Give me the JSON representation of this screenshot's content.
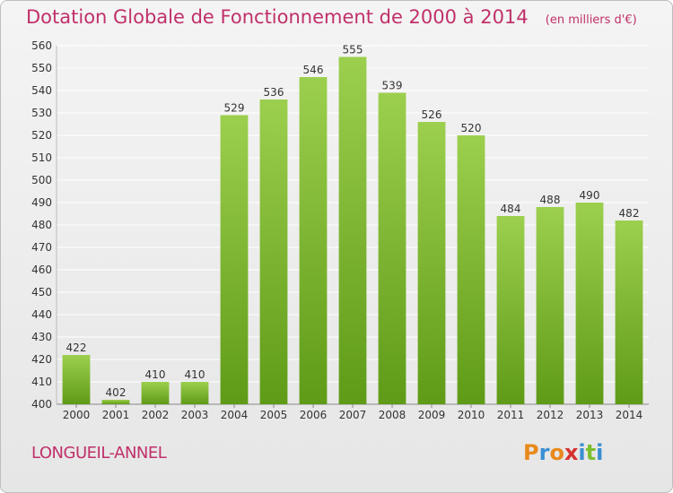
{
  "header": {
    "title": "Dotation Globale de Fonctionnement de 2000 à 2014",
    "subtitle": "(en milliers d'€)"
  },
  "footer": {
    "commune": "LONGUEIL-ANNEL",
    "logo": "Proxiti"
  },
  "colors": {
    "title": "#c0306a",
    "bar_light": "#9ccf4e",
    "bar_dark": "#5f9b17",
    "grid": "#ffffff",
    "logo_letters": [
      "#e8891c",
      "#3a8fd2",
      "#e8891c",
      "#d6312e",
      "#3a8fd2",
      "#7cbf2f",
      "#3a8fd2"
    ]
  },
  "chart_data": {
    "type": "bar",
    "title": "Dotation Globale de Fonctionnement de 2000 à 2014",
    "subtitle": "(en milliers d'€)",
    "categories": [
      "2000",
      "2001",
      "2002",
      "2003",
      "2004",
      "2005",
      "2006",
      "2007",
      "2008",
      "2009",
      "2010",
      "2011",
      "2012",
      "2013",
      "2014"
    ],
    "values": [
      422,
      402,
      410,
      410,
      529,
      536,
      546,
      555,
      539,
      526,
      520,
      484,
      488,
      490,
      482
    ],
    "value_labels": [
      "422",
      "402",
      "410",
      "410",
      "529",
      "536",
      "546",
      "555",
      "539",
      "526",
      "520",
      "484",
      "488",
      "490",
      "482"
    ],
    "xlabel": "",
    "ylabel": "",
    "ylim": [
      400,
      560
    ],
    "yticks": [
      400,
      410,
      420,
      430,
      440,
      450,
      460,
      470,
      480,
      490,
      500,
      510,
      520,
      530,
      540,
      550,
      560
    ],
    "grid": true
  }
}
